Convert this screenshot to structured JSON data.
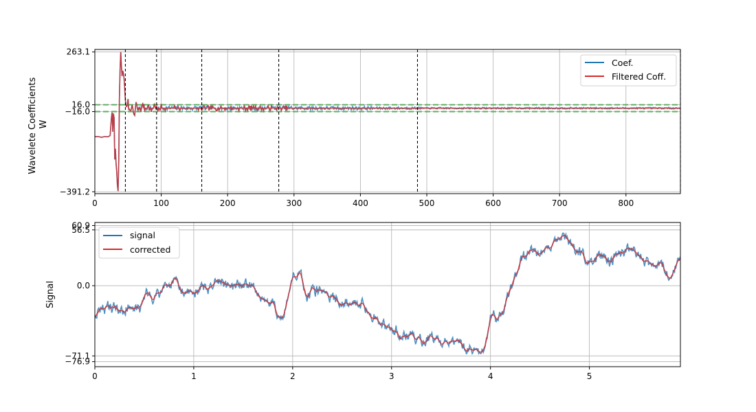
{
  "chart_data": [
    {
      "type": "line",
      "ylabel": "Wavelete Coefficients\nW",
      "xlim": [
        0,
        882
      ],
      "ylim": [
        -400,
        275
      ],
      "xticks": [
        0,
        100,
        200,
        300,
        400,
        500,
        600,
        700,
        800
      ],
      "yticks": [
        263.1,
        16.0,
        -16.0,
        -391.2
      ],
      "threshold": 16.0,
      "vlines": [
        46,
        93,
        161,
        277,
        486,
        882
      ],
      "legend_position": "upper-right",
      "series": [
        {
          "name": "Coef.",
          "color": "#1f77b4"
        },
        {
          "name": "Filtered Coff.",
          "color": "#d62728"
        }
      ],
      "coef_keypoints": [
        [
          0,
          -133
        ],
        [
          5,
          -133
        ],
        [
          10,
          -136
        ],
        [
          15,
          -133
        ],
        [
          20,
          -134
        ],
        [
          23,
          -128
        ],
        [
          25,
          -45
        ],
        [
          26,
          -20
        ],
        [
          27,
          -110
        ],
        [
          28,
          -25
        ],
        [
          29,
          -45
        ],
        [
          30,
          -240
        ],
        [
          31,
          -190
        ],
        [
          32,
          -260
        ],
        [
          33,
          -300
        ],
        [
          34,
          -360
        ],
        [
          35,
          -388
        ],
        [
          36,
          -250
        ],
        [
          37,
          40
        ],
        [
          38,
          180
        ],
        [
          39,
          263.1
        ],
        [
          40,
          200
        ],
        [
          41,
          150
        ],
        [
          42,
          175
        ],
        [
          43,
          165
        ],
        [
          44,
          140
        ],
        [
          45,
          90
        ],
        [
          46,
          40
        ],
        [
          48,
          -5
        ],
        [
          50,
          30
        ],
        [
          52,
          -15
        ],
        [
          55,
          10
        ],
        [
          58,
          -20
        ],
        [
          60,
          -35
        ],
        [
          62,
          20
        ],
        [
          65,
          -10
        ],
        [
          68,
          5
        ],
        [
          70,
          -15
        ],
        [
          72,
          25
        ],
        [
          75,
          -5
        ],
        [
          80,
          10
        ],
        [
          85,
          -10
        ],
        [
          90,
          15
        ],
        [
          95,
          -12
        ],
        [
          100,
          8
        ]
      ]
    },
    {
      "type": "line",
      "ylabel": "Signal",
      "xlim": [
        0,
        5.92
      ],
      "ylim": [
        -82,
        64
      ],
      "xticks": [
        0,
        1,
        2,
        3,
        4,
        5
      ],
      "yticks": [
        60.9,
        56.5,
        0.0,
        -71.1,
        -76.9
      ],
      "legend_position": "upper-left",
      "series": [
        {
          "name": "signal",
          "color": "#1f77b4"
        },
        {
          "name": "corrected",
          "color": "#d62728"
        }
      ],
      "trend_keypoints": [
        [
          0,
          -29
        ],
        [
          0.1,
          -24
        ],
        [
          0.2,
          -20
        ],
        [
          0.3,
          -28
        ],
        [
          0.35,
          -20
        ],
        [
          0.45,
          -27
        ],
        [
          0.5,
          -12
        ],
        [
          0.6,
          -10
        ],
        [
          0.7,
          -4
        ],
        [
          0.8,
          3
        ],
        [
          0.9,
          -6
        ],
        [
          1.0,
          -8
        ],
        [
          1.1,
          -2
        ],
        [
          1.2,
          2
        ],
        [
          1.3,
          2
        ],
        [
          1.4,
          0
        ],
        [
          1.5,
          3
        ],
        [
          1.6,
          -4
        ],
        [
          1.7,
          -16
        ],
        [
          1.8,
          -18
        ],
        [
          1.85,
          -32
        ],
        [
          1.9,
          -38
        ],
        [
          1.95,
          -12
        ],
        [
          2.0,
          8
        ],
        [
          2.05,
          15
        ],
        [
          2.1,
          4
        ],
        [
          2.15,
          -16
        ],
        [
          2.2,
          -4
        ],
        [
          2.3,
          -6
        ],
        [
          2.4,
          -12
        ],
        [
          2.5,
          -18
        ],
        [
          2.6,
          -14
        ],
        [
          2.7,
          -20
        ],
        [
          2.8,
          -30
        ],
        [
          2.9,
          -40
        ],
        [
          3.0,
          -42
        ],
        [
          3.1,
          -50
        ],
        [
          3.2,
          -53
        ],
        [
          3.3,
          -57
        ],
        [
          3.4,
          -52
        ],
        [
          3.5,
          -58
        ],
        [
          3.6,
          -57
        ],
        [
          3.7,
          -62
        ],
        [
          3.8,
          -63
        ],
        [
          3.9,
          -66
        ],
        [
          3.95,
          -60
        ],
        [
          4.0,
          -33
        ],
        [
          4.1,
          -30
        ],
        [
          4.2,
          -8
        ],
        [
          4.3,
          24
        ],
        [
          4.4,
          33
        ],
        [
          4.5,
          34
        ],
        [
          4.6,
          40
        ],
        [
          4.7,
          48
        ],
        [
          4.8,
          44
        ],
        [
          4.9,
          32
        ],
        [
          5.0,
          26
        ],
        [
          5.1,
          34
        ],
        [
          5.2,
          24
        ],
        [
          5.3,
          28
        ],
        [
          5.4,
          36
        ],
        [
          5.5,
          30
        ],
        [
          5.6,
          24
        ],
        [
          5.7,
          20
        ],
        [
          5.8,
          16
        ],
        [
          5.92,
          22
        ]
      ]
    }
  ]
}
